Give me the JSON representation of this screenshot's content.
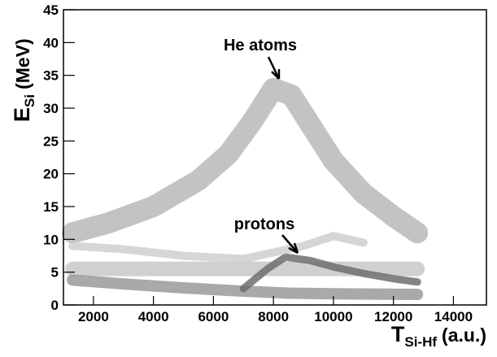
{
  "chart_data": {
    "type": "density",
    "xlabel": {
      "main": "T",
      "sub": "Si-Hf",
      "unit": "(a.u.)"
    },
    "ylabel": {
      "main": "E",
      "sub": "Si",
      "unit": "(MeV)"
    },
    "xlim": [
      1000,
      15100
    ],
    "ylim": [
      0,
      45
    ],
    "xticks": [
      2000,
      4000,
      6000,
      8000,
      10000,
      12000,
      14000
    ],
    "yticks": [
      0,
      5,
      10,
      15,
      20,
      25,
      30,
      35,
      40,
      45
    ],
    "annotations": [
      {
        "text": "He atoms"
      },
      {
        "text": "protons"
      }
    ],
    "series": [
      {
        "color": "#b8b8b8",
        "x": [
          1300,
          2500,
          4000,
          5500,
          6500,
          7300,
          8000,
          8600,
          9300,
          10000,
          11000,
          12000,
          12800
        ],
        "values": [
          11,
          12.5,
          15,
          19,
          23,
          28,
          33,
          32,
          27,
          22,
          17,
          13.5,
          11
        ]
      },
      {
        "color": "#c8c8c8",
        "x": [
          1300,
          3000,
          5000,
          7000,
          9000,
          11000,
          12800
        ],
        "values": [
          5.5,
          5.5,
          5.5,
          5.5,
          5.5,
          5.5,
          5.5
        ]
      },
      {
        "color": "#9a9a9a",
        "x": [
          1300,
          3000,
          5000,
          7000,
          8500,
          10000,
          12800
        ],
        "values": [
          3.8,
          3.2,
          2.6,
          2.1,
          1.8,
          1.7,
          1.6
        ]
      },
      {
        "color": "#6e6e6e",
        "x": [
          7000,
          7800,
          8400,
          9200,
          10000,
          11000,
          12000,
          12800
        ],
        "values": [
          2.5,
          5.5,
          7.3,
          6.8,
          5.8,
          4.8,
          4,
          3.5
        ]
      },
      {
        "color": "#cfcfcf",
        "x": [
          1300,
          3000,
          5000,
          7000,
          9000,
          10000,
          11000
        ],
        "values": [
          9,
          8.5,
          7.5,
          7,
          9,
          10.5,
          9.5
        ]
      }
    ]
  }
}
